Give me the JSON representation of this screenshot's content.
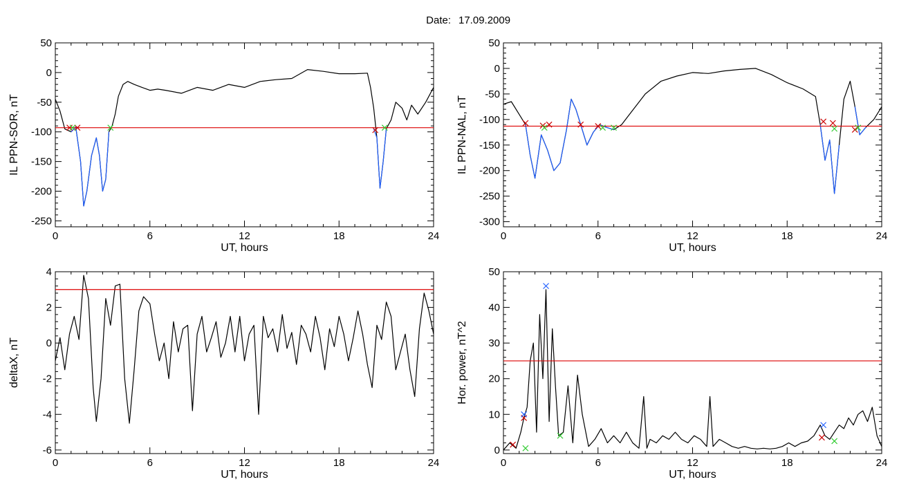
{
  "figure": {
    "date_label": "Date:",
    "date_value": "17.09.2009"
  },
  "chart_data": [
    {
      "id": "il_sor",
      "type": "line",
      "xlabel": "UT, hours",
      "ylabel": "IL PPN-SOR, nT",
      "xlim": [
        0,
        24
      ],
      "ylim": [
        -260,
        50
      ],
      "xticks": [
        0,
        6,
        12,
        18,
        24
      ],
      "yticks": [
        50,
        0,
        -50,
        -100,
        -150,
        -200,
        -250
      ],
      "threshold": -93,
      "series": [
        {
          "role": "main",
          "color": "#000000",
          "x": [
            0,
            0.3,
            0.6,
            1.0,
            1.3,
            1.6,
            1.8,
            2.0,
            2.3,
            2.6,
            2.8,
            3.0,
            3.2,
            3.4,
            3.6,
            3.8,
            4.0,
            4.3,
            4.6,
            5.0,
            5.5,
            6.0,
            6.5,
            7.0,
            8.0,
            9.0,
            10.0,
            11.0,
            12.0,
            13.0,
            14.0,
            15.0,
            16.0,
            17.0,
            18.0,
            19.0,
            19.8,
            20.0,
            20.2,
            20.4,
            20.6,
            20.8,
            21.0,
            21.3,
            21.6,
            22.0,
            22.3,
            22.6,
            23.0,
            23.5,
            24.0
          ],
          "y": [
            -45,
            -65,
            -95,
            -100,
            -92,
            -150,
            -225,
            -200,
            -140,
            -110,
            -140,
            -200,
            -180,
            -100,
            -90,
            -70,
            -40,
            -20,
            -15,
            -20,
            -25,
            -30,
            -28,
            -30,
            -35,
            -25,
            -30,
            -20,
            -25,
            -15,
            -12,
            -10,
            5,
            2,
            -2,
            -2,
            -1,
            -25,
            -60,
            -110,
            -195,
            -150,
            -95,
            -80,
            -50,
            -60,
            -80,
            -55,
            -70,
            -50,
            -25
          ]
        },
        {
          "role": "event",
          "color": "#1f5fff",
          "x": [
            1.0,
            1.3,
            1.6,
            1.8,
            2.0,
            2.3,
            2.6,
            2.8,
            3.0,
            3.2,
            3.4
          ],
          "y": [
            -100,
            -92,
            -150,
            -225,
            -200,
            -140,
            -110,
            -140,
            -200,
            -180,
            -100
          ]
        },
        {
          "role": "event",
          "color": "#1f5fff",
          "x": [
            20.2,
            20.4,
            20.6,
            20.8,
            21.0
          ],
          "y": [
            -95,
            -110,
            -195,
            -150,
            -95
          ]
        }
      ],
      "markers": [
        {
          "x": 0.9,
          "y": -93,
          "color": "#cc0000"
        },
        {
          "x": 1.4,
          "y": -93,
          "color": "#cc0000"
        },
        {
          "x": 1.1,
          "y": -93,
          "color": "#33cc33"
        },
        {
          "x": 3.5,
          "y": -93,
          "color": "#33cc33"
        },
        {
          "x": 20.3,
          "y": -97,
          "color": "#cc0000"
        },
        {
          "x": 20.9,
          "y": -93,
          "color": "#33cc33"
        }
      ]
    },
    {
      "id": "il_nal",
      "type": "line",
      "xlabel": "UT, hours",
      "ylabel": "IL PPN-NAL, nT",
      "xlim": [
        0,
        24
      ],
      "ylim": [
        -310,
        50
      ],
      "xticks": [
        0,
        6,
        12,
        18,
        24
      ],
      "yticks": [
        50,
        0,
        -50,
        -100,
        -150,
        -200,
        -250,
        -300
      ],
      "threshold": -113,
      "series": [
        {
          "role": "main",
          "color": "#000000",
          "x": [
            0,
            0.5,
            1.0,
            1.4,
            1.7,
            2.0,
            2.4,
            2.8,
            3.2,
            3.6,
            4.0,
            4.3,
            4.6,
            4.9,
            5.3,
            5.7,
            6.1,
            6.5,
            7.0,
            7.5,
            8.0,
            9.0,
            10.0,
            11.0,
            12.0,
            13.0,
            14.0,
            15.0,
            16.0,
            17.0,
            18.0,
            19.0,
            19.8,
            20.1,
            20.4,
            20.7,
            21.0,
            21.3,
            21.6,
            22.0,
            22.3,
            22.6,
            23.0,
            23.5,
            24.0
          ],
          "y": [
            -70,
            -65,
            -90,
            -110,
            -170,
            -215,
            -130,
            -160,
            -200,
            -185,
            -120,
            -60,
            -80,
            -110,
            -150,
            -125,
            -110,
            -115,
            -120,
            -110,
            -90,
            -50,
            -25,
            -15,
            -8,
            -10,
            -5,
            -2,
            0,
            -12,
            -28,
            -40,
            -55,
            -110,
            -180,
            -140,
            -245,
            -150,
            -60,
            -25,
            -75,
            -130,
            -115,
            -100,
            -75
          ]
        },
        {
          "role": "event",
          "color": "#1f5fff",
          "x": [
            1.4,
            1.7,
            2.0,
            2.4,
            2.8,
            3.2,
            3.6,
            4.0,
            4.3,
            4.6,
            4.9,
            5.3,
            5.7,
            6.1,
            6.5,
            7.0
          ],
          "y": [
            -110,
            -170,
            -215,
            -130,
            -160,
            -200,
            -185,
            -120,
            -60,
            -80,
            -110,
            -150,
            -125,
            -110,
            -115,
            -120
          ]
        },
        {
          "role": "event",
          "color": "#1f5fff",
          "x": [
            20.1,
            20.4,
            20.7,
            21.0,
            21.3
          ],
          "y": [
            -110,
            -180,
            -140,
            -245,
            -150
          ]
        },
        {
          "role": "event",
          "color": "#1f5fff",
          "x": [
            22.3,
            22.6,
            23.0
          ],
          "y": [
            -75,
            -130,
            -115
          ]
        }
      ],
      "markers": [
        {
          "x": 1.4,
          "y": -107,
          "color": "#cc0000"
        },
        {
          "x": 2.5,
          "y": -112,
          "color": "#cc0000"
        },
        {
          "x": 2.9,
          "y": -110,
          "color": "#cc0000"
        },
        {
          "x": 4.9,
          "y": -110,
          "color": "#cc0000"
        },
        {
          "x": 6.0,
          "y": -113,
          "color": "#cc0000"
        },
        {
          "x": 20.3,
          "y": -104,
          "color": "#cc0000"
        },
        {
          "x": 20.9,
          "y": -107,
          "color": "#cc0000"
        },
        {
          "x": 22.3,
          "y": -120,
          "color": "#cc0000"
        },
        {
          "x": 2.6,
          "y": -116,
          "color": "#33cc33"
        },
        {
          "x": 6.3,
          "y": -116,
          "color": "#33cc33"
        },
        {
          "x": 7.0,
          "y": -116,
          "color": "#33cc33"
        },
        {
          "x": 21.0,
          "y": -118,
          "color": "#33cc33"
        },
        {
          "x": 22.5,
          "y": -116,
          "color": "#33cc33"
        }
      ]
    },
    {
      "id": "deltax",
      "type": "line",
      "xlabel": "UT, hours",
      "ylabel": "deltaX, nT",
      "xlim": [
        0,
        24
      ],
      "ylim": [
        -6.2,
        4
      ],
      "xticks": [
        0,
        6,
        12,
        18,
        24
      ],
      "yticks": [
        4,
        2,
        0,
        -2,
        -4,
        -6
      ],
      "threshold": 3,
      "series": [
        {
          "role": "main",
          "color": "#000000",
          "x": [
            0,
            0.3,
            0.6,
            0.9,
            1.2,
            1.5,
            1.8,
            2.1,
            2.4,
            2.6,
            2.9,
            3.2,
            3.5,
            3.8,
            4.1,
            4.4,
            4.7,
            5.0,
            5.3,
            5.6,
            6.0,
            6.3,
            6.6,
            6.9,
            7.2,
            7.5,
            7.8,
            8.1,
            8.4,
            8.7,
            9.0,
            9.3,
            9.6,
            9.9,
            10.2,
            10.5,
            10.8,
            11.1,
            11.4,
            11.7,
            12.0,
            12.3,
            12.6,
            12.9,
            13.2,
            13.5,
            13.8,
            14.1,
            14.4,
            14.7,
            15.0,
            15.3,
            15.6,
            15.9,
            16.2,
            16.5,
            16.8,
            17.1,
            17.4,
            17.7,
            18.0,
            18.3,
            18.6,
            18.9,
            19.2,
            19.5,
            19.8,
            20.1,
            20.4,
            20.7,
            21.0,
            21.3,
            21.6,
            21.9,
            22.2,
            22.5,
            22.8,
            23.1,
            23.4,
            23.7,
            24.0
          ],
          "y": [
            -1,
            0.3,
            -1.5,
            0.5,
            1.5,
            0.2,
            3.8,
            2.5,
            -2.5,
            -4.4,
            -2,
            2.5,
            1,
            3.2,
            3.3,
            -2,
            -4.5,
            -1.5,
            1.8,
            2.6,
            2.2,
            0.5,
            -1,
            0,
            -2,
            1.2,
            -0.5,
            0.8,
            1,
            -3.8,
            0.5,
            1.5,
            -0.5,
            0.3,
            1.2,
            -0.8,
            0,
            1.5,
            -0.5,
            1.5,
            -1,
            0.5,
            1,
            -4,
            1.5,
            0.3,
            0.8,
            -0.5,
            1.6,
            -0.3,
            0.6,
            -1.2,
            1,
            0.5,
            -0.5,
            1.5,
            0.3,
            -1.5,
            0.8,
            -0.2,
            1.5,
            0.5,
            -1,
            0.3,
            1.8,
            0.5,
            -1.2,
            -2.5,
            1,
            0.2,
            2.3,
            1.5,
            -1.5,
            -0.5,
            0.5,
            -1.5,
            -3,
            0.8,
            2.8,
            1.8,
            0.5
          ]
        }
      ],
      "markers": []
    },
    {
      "id": "hor_power",
      "type": "line",
      "xlabel": "UT, hours",
      "ylabel": "Hor. power, nT^2",
      "xlim": [
        0,
        24
      ],
      "ylim": [
        -1,
        50
      ],
      "xticks": [
        0,
        6,
        12,
        18,
        24
      ],
      "yticks": [
        50,
        40,
        30,
        20,
        10,
        0
      ],
      "threshold": 25,
      "series": [
        {
          "role": "main",
          "color": "#000000",
          "x": [
            0,
            0.4,
            0.8,
            1.1,
            1.3,
            1.5,
            1.7,
            1.9,
            2.1,
            2.3,
            2.5,
            2.7,
            2.9,
            3.1,
            3.3,
            3.5,
            3.8,
            4.1,
            4.4,
            4.7,
            5.0,
            5.4,
            5.8,
            6.2,
            6.6,
            7.0,
            7.4,
            7.8,
            8.2,
            8.6,
            8.9,
            9.1,
            9.3,
            9.7,
            10.1,
            10.5,
            10.9,
            11.3,
            11.7,
            12.1,
            12.5,
            12.9,
            13.1,
            13.3,
            13.7,
            14.1,
            14.5,
            14.9,
            15.3,
            15.7,
            16.1,
            16.5,
            16.9,
            17.3,
            17.7,
            18.1,
            18.5,
            18.9,
            19.3,
            19.7,
            20.1,
            20.4,
            20.7,
            21.0,
            21.3,
            21.6,
            21.9,
            22.2,
            22.5,
            22.8,
            23.1,
            23.4,
            23.7,
            24.0
          ],
          "y": [
            0,
            2,
            0.5,
            5,
            9,
            12,
            25,
            30,
            5,
            38,
            20,
            45,
            8,
            34,
            18,
            4,
            5,
            18,
            2,
            21,
            10,
            1,
            3,
            6,
            2,
            4,
            2,
            5,
            2,
            0.5,
            15,
            0.5,
            3,
            2,
            4,
            3,
            5,
            3,
            2,
            4,
            3,
            1,
            15,
            1,
            3,
            2,
            1,
            0.5,
            1,
            0.5,
            0.3,
            0.5,
            0.3,
            0.5,
            1,
            2,
            1,
            2,
            2.5,
            4,
            7,
            4,
            3,
            5,
            7,
            6,
            9,
            7,
            10,
            11,
            8,
            12,
            4,
            1
          ]
        }
      ],
      "markers": [
        {
          "x": 0.6,
          "y": 1.5,
          "color": "#cc0000"
        },
        {
          "x": 1.3,
          "y": 9,
          "color": "#cc0000"
        },
        {
          "x": 20.2,
          "y": 3.5,
          "color": "#cc0000"
        },
        {
          "x": 20.3,
          "y": 7,
          "color": "#1f5fff"
        },
        {
          "x": 1.3,
          "y": 10,
          "color": "#1f5fff"
        },
        {
          "x": 2.7,
          "y": 46,
          "color": "#1f5fff"
        },
        {
          "x": 1.4,
          "y": 0.5,
          "color": "#33cc33"
        },
        {
          "x": 3.6,
          "y": 4,
          "color": "#33cc33"
        },
        {
          "x": 21.0,
          "y": 2.5,
          "color": "#33cc33"
        }
      ]
    }
  ]
}
